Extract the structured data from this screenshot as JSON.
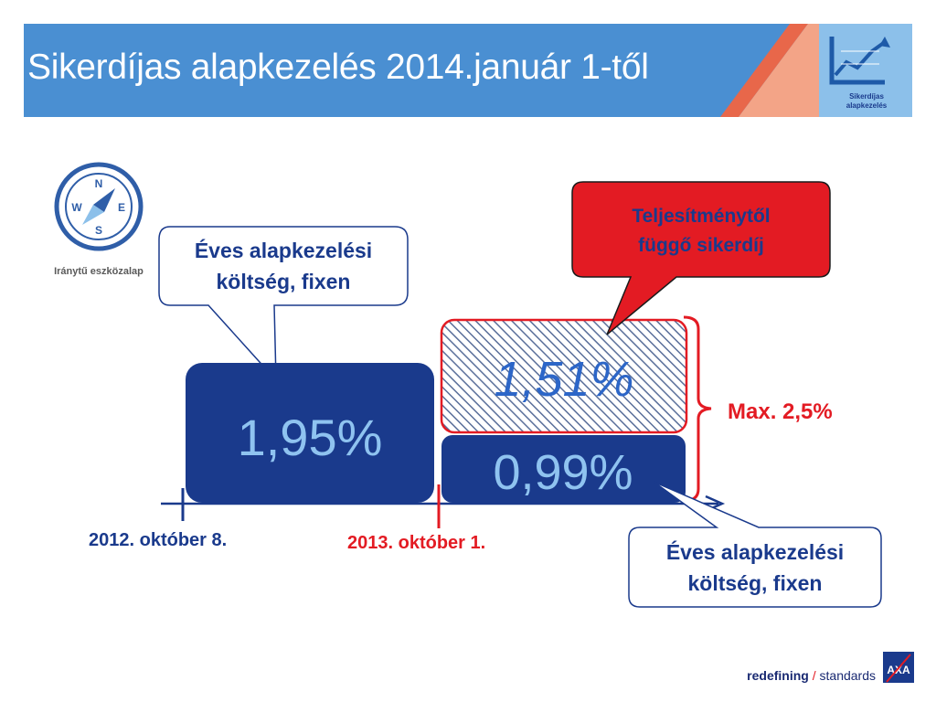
{
  "header": {
    "title": "Sikerdíjas alapkezelés 2014.január 1-től",
    "logo_caption_line1": "Sikerdíjas",
    "logo_caption_line2": "alapkezelés"
  },
  "fund_logo": {
    "compass_n": "N",
    "compass_s": "S",
    "compass_w": "W",
    "compass_e": "E",
    "caption": "Iránytű eszközalap"
  },
  "bars": {
    "old_fee": "1,95%",
    "performance_fee": "1,51%",
    "new_fixed_fee": "0,99%"
  },
  "callouts": {
    "top_left_line1": "Éves alapkezelési",
    "top_left_line2": "költség, fixen",
    "performance_line1": "Teljesítménytől",
    "performance_line2": "függő sikerdíj",
    "bottom_right_line1": "Éves alapkezelési",
    "bottom_right_line2": "költség, fixen",
    "max": "Max. 2,5%"
  },
  "timeline": {
    "date_start": "2012. október 8.",
    "date_change": "2013. október 1."
  },
  "footer": {
    "slogan_bold": "redefining",
    "slogan_sep": "/",
    "slogan_rest": "standards",
    "brand": "AXA"
  },
  "colors": {
    "header_blue": "#4a8fd2",
    "navy": "#1a3a8c",
    "light_blue_text": "#8fc3f0",
    "red": "#e31b23",
    "accent_orange": "#f04e2d"
  }
}
